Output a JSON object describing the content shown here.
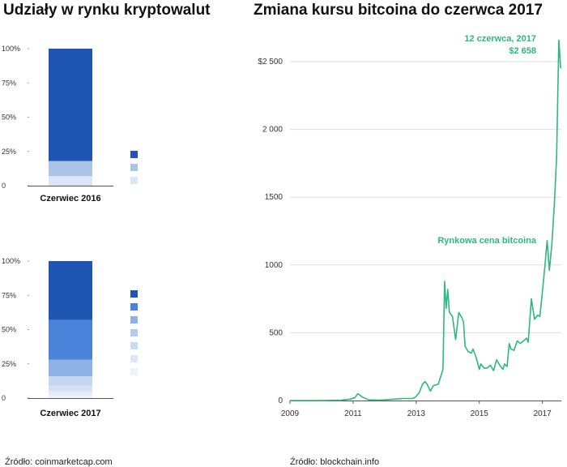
{
  "left_title": "Udziały w rynku kryptowalut",
  "right_title": "Zmiana kursu bitcoina do czerwca 2017",
  "source_left": "Źródło: coinmarketcap.com",
  "source_right": "Źródło:  blockchain.info",
  "colors": {
    "line": "#2db87d",
    "axis": "#555555",
    "grid": "#dddddd"
  },
  "chart_data": [
    {
      "type": "bar",
      "stacked": true,
      "categories": [
        "Czerwiec 2016"
      ],
      "y_ticks": [
        "0",
        "25%",
        "50%",
        "75%",
        "100%"
      ],
      "ylim": [
        0,
        100
      ],
      "series": [
        {
          "value": 7,
          "color": "#dbe6f6"
        },
        {
          "value": 11,
          "color": "#aac4e8"
        },
        {
          "value": 82,
          "color": "#1f56b4"
        }
      ],
      "legend_swatches": [
        "#1f56b4",
        "#aac4e8",
        "#dbe6f6"
      ]
    },
    {
      "type": "bar",
      "stacked": true,
      "categories": [
        "Czerwiec 2017"
      ],
      "y_ticks": [
        "0",
        "25%",
        "50%",
        "75%",
        "100%"
      ],
      "ylim": [
        0,
        100
      ],
      "series": [
        {
          "value": 2,
          "color": "#eef3fb"
        },
        {
          "value": 3,
          "color": "#e2ebf8"
        },
        {
          "value": 4,
          "color": "#d4e1f4"
        },
        {
          "value": 7,
          "color": "#c4d6f0"
        },
        {
          "value": 12,
          "color": "#8fb1e4"
        },
        {
          "value": 29,
          "color": "#4a83d9"
        },
        {
          "value": 43,
          "color": "#1f56b4"
        }
      ],
      "legend_swatches": [
        "#1f56b4",
        "#4a83d9",
        "#8fb1e4",
        "#b3cbee",
        "#ccdcf2",
        "#dde8f7",
        "#eef3fb"
      ]
    },
    {
      "type": "line",
      "series": [
        {
          "x": [
            2009.0,
            2010.0,
            2010.6,
            2010.9,
            2011.05,
            2011.15,
            2011.3,
            2011.5,
            2011.8,
            2012.0,
            2012.3,
            2012.6,
            2012.9,
            2013.0,
            2013.1,
            2013.2,
            2013.28,
            2013.35,
            2013.45,
            2013.55,
            2013.7,
            2013.85,
            2013.9,
            2013.95,
            2014.0,
            2014.05,
            2014.15,
            2014.25,
            2014.35,
            2014.45,
            2014.5,
            2014.55,
            2014.65,
            2014.75,
            2014.8,
            2014.9,
            2015.0,
            2015.05,
            2015.15,
            2015.25,
            2015.35,
            2015.45,
            2015.55,
            2015.65,
            2015.75,
            2015.8,
            2015.88,
            2015.95,
            2016.0,
            2016.1,
            2016.2,
            2016.3,
            2016.35,
            2016.45,
            2016.5,
            2016.55,
            2016.65,
            2016.75,
            2016.85,
            2016.92,
            2017.0,
            2017.08,
            2017.15,
            2017.22,
            2017.3,
            2017.38,
            2017.45,
            2017.52,
            2017.58
          ],
          "y": [
            0,
            0,
            2,
            10,
            20,
            50,
            25,
            5,
            3,
            5,
            10,
            15,
            15,
            30,
            60,
            120,
            140,
            120,
            70,
            110,
            120,
            230,
            880,
            680,
            820,
            650,
            620,
            450,
            650,
            610,
            580,
            400,
            360,
            350,
            380,
            320,
            230,
            270,
            240,
            240,
            260,
            220,
            300,
            260,
            230,
            270,
            250,
            420,
            380,
            370,
            440,
            420,
            430,
            450,
            460,
            430,
            750,
            600,
            630,
            620,
            800,
            990,
            1180,
            960,
            1150,
            1450,
            1800,
            2658,
            2450
          ],
          "name": ""
        }
      ],
      "x_ticks": [
        "2009",
        "2011",
        "2013",
        "2015",
        "2017"
      ],
      "y_ticks": [
        "0",
        "500",
        "1000",
        "1500",
        "2 000",
        "$2 500"
      ],
      "y_tick_values": [
        0,
        500,
        1000,
        1500,
        2000,
        2500
      ],
      "xlim": [
        2009,
        2017.6
      ],
      "ylim": [
        0,
        2500
      ],
      "grid": true,
      "annotations": [
        {
          "text": "Rynkowa cena bitcoina"
        },
        {
          "text": "12 czerwca, 2017"
        },
        {
          "text": "$2 658"
        }
      ]
    }
  ]
}
